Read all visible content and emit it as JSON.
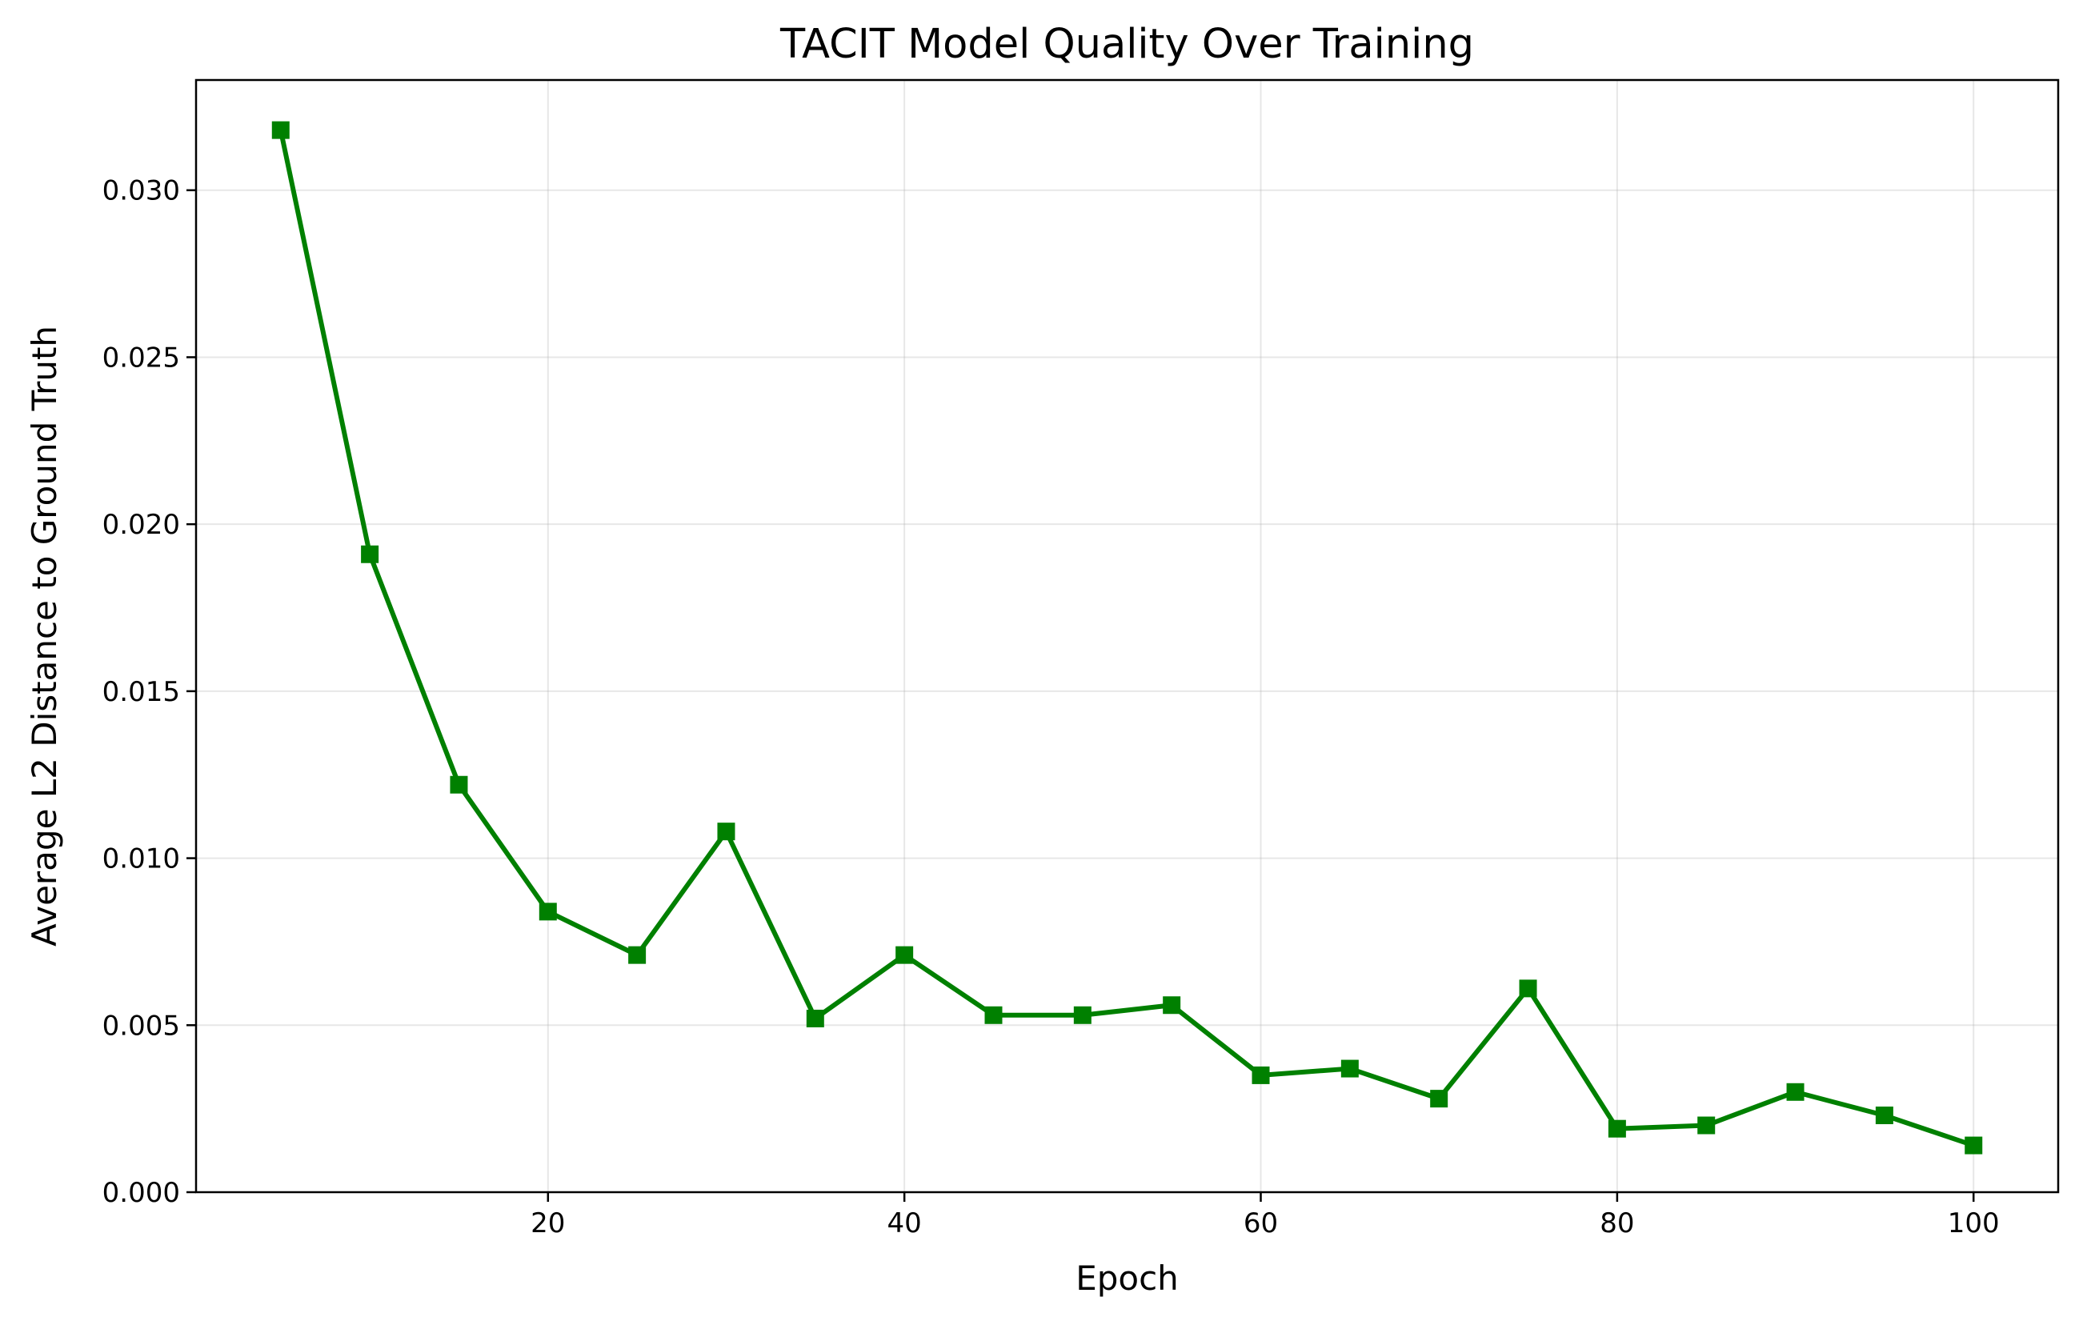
{
  "chart_data": {
    "type": "line",
    "title": "TACIT Model Quality Over Training",
    "xlabel": "Epoch",
    "ylabel": "Average L2 Distance to Ground Truth",
    "xlim": [
      0.25,
      104.75
    ],
    "ylim": [
      0,
      0.0333
    ],
    "xticks": [
      20,
      40,
      60,
      80,
      100
    ],
    "xtick_labels": [
      "20",
      "40",
      "60",
      "80",
      "100"
    ],
    "yticks": [
      0,
      0.005,
      0.01,
      0.015,
      0.02,
      0.025,
      0.03
    ],
    "ytick_labels": [
      "0.000",
      "0.005",
      "0.010",
      "0.015",
      "0.020",
      "0.025",
      "0.030"
    ],
    "grid": true,
    "legend": "none",
    "line_color": "#008000",
    "marker": "square",
    "series": [
      {
        "x": [
          5,
          10,
          15,
          20,
          25,
          30,
          35,
          40,
          45,
          50,
          55,
          60,
          65,
          70,
          75,
          80,
          85,
          90,
          95,
          100
        ],
        "y": [
          0.0318,
          0.0191,
          0.0122,
          0.0084,
          0.0071,
          0.0108,
          0.0052,
          0.0071,
          0.0053,
          0.0053,
          0.0056,
          0.0035,
          0.0037,
          0.0028,
          0.0061,
          0.0019,
          0.002,
          0.003,
          0.0023,
          0.0014
        ]
      }
    ]
  }
}
